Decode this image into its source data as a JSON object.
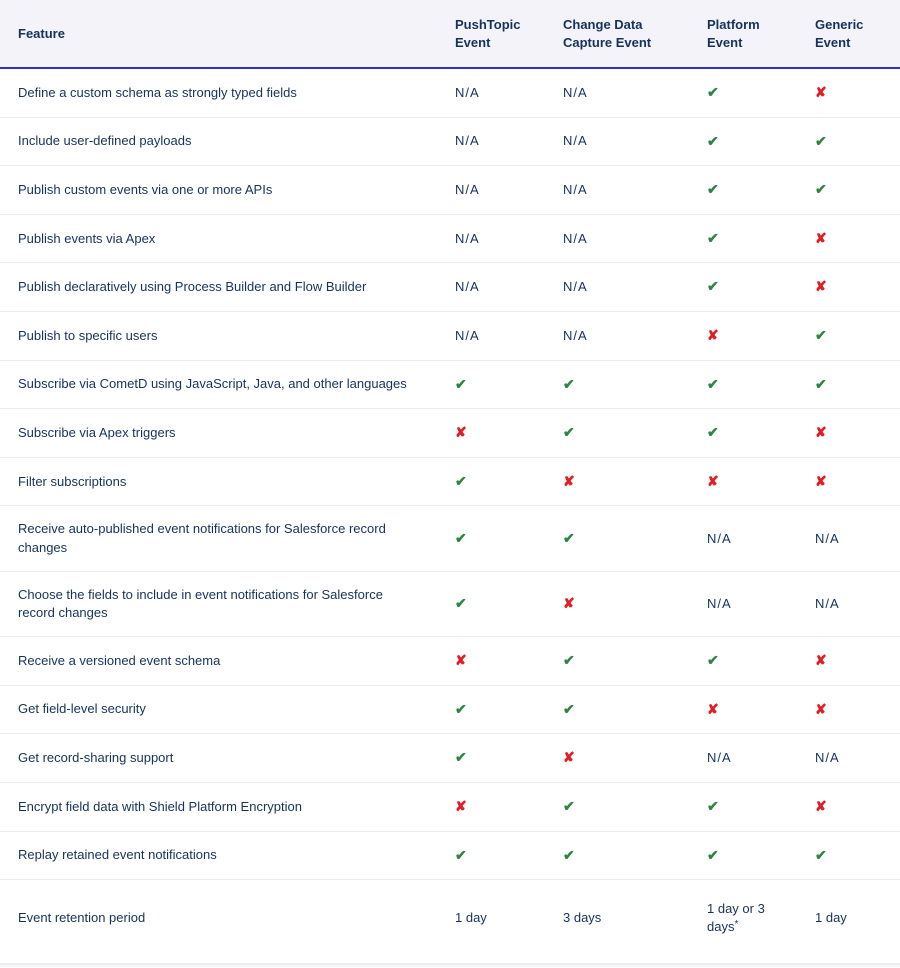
{
  "table": {
    "columns": [
      {
        "key": "feature",
        "label": "Feature"
      },
      {
        "key": "pushtopic",
        "label": "PushTopic Event"
      },
      {
        "key": "cdc",
        "label": "Change Data Capture Event"
      },
      {
        "key": "platform",
        "label": "Platform Event"
      },
      {
        "key": "generic",
        "label": "Generic Event"
      }
    ],
    "legend": {
      "check": "supported",
      "cross": "not supported",
      "na": "N/A"
    },
    "rows": [
      {
        "feature": "Define a custom schema as strongly typed fields",
        "cells": [
          "na",
          "na",
          "check",
          "cross"
        ]
      },
      {
        "feature": "Include user-defined payloads",
        "cells": [
          "na",
          "na",
          "check",
          "check"
        ]
      },
      {
        "feature": "Publish custom events via one or more APIs",
        "cells": [
          "na",
          "na",
          "check",
          "check"
        ]
      },
      {
        "feature": "Publish events via Apex",
        "cells": [
          "na",
          "na",
          "check",
          "cross"
        ]
      },
      {
        "feature": "Publish declaratively using Process Builder and Flow Builder",
        "cells": [
          "na",
          "na",
          "check",
          "cross"
        ]
      },
      {
        "feature": "Publish to specific users",
        "cells": [
          "na",
          "na",
          "cross",
          "check"
        ]
      },
      {
        "feature": "Subscribe via CometD using JavaScript, Java, and other languages",
        "cells": [
          "check",
          "check",
          "check",
          "check"
        ]
      },
      {
        "feature": "Subscribe via Apex triggers",
        "cells": [
          "cross",
          "check",
          "check",
          "cross"
        ]
      },
      {
        "feature": "Filter subscriptions",
        "cells": [
          "check",
          "cross",
          "cross",
          "cross"
        ]
      },
      {
        "feature": "Receive auto-published event notifications for Salesforce record changes",
        "cells": [
          "check",
          "check",
          "na",
          "na"
        ]
      },
      {
        "feature": "Choose the fields to include in event notifications for Salesforce record changes",
        "cells": [
          "check",
          "cross",
          "na",
          "na"
        ]
      },
      {
        "feature": "Receive a versioned event schema",
        "cells": [
          "cross",
          "check",
          "check",
          "cross"
        ]
      },
      {
        "feature": "Get field-level security",
        "cells": [
          "check",
          "check",
          "cross",
          "cross"
        ]
      },
      {
        "feature": "Get record-sharing support",
        "cells": [
          "check",
          "cross",
          "na",
          "na"
        ]
      },
      {
        "feature": "Encrypt field data with Shield Platform Encryption",
        "cells": [
          "cross",
          "check",
          "check",
          "cross"
        ]
      },
      {
        "feature": "Replay retained event notifications",
        "cells": [
          "check",
          "check",
          "check",
          "check"
        ]
      },
      {
        "feature": "Event retention period",
        "cells": [
          {
            "type": "text",
            "value": "1 day"
          },
          {
            "type": "text",
            "value": "3 days"
          },
          {
            "type": "text",
            "value": "1 day or 3 days",
            "note": "*"
          },
          {
            "type": "text",
            "value": "1 day"
          }
        ]
      }
    ],
    "style": {
      "header_bg": "#f3f3f9",
      "header_border_bottom": "#2f2fd0",
      "row_border": "#ececf2",
      "text_color": "#16325c",
      "check_color": "#2e8540",
      "cross_color": "#e31b23",
      "font_size_header_pt": 10,
      "font_size_body_pt": 10,
      "na_text": "N/A"
    }
  }
}
